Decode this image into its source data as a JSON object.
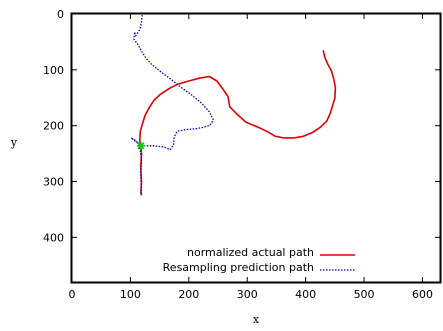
{
  "chart_data": {
    "type": "line",
    "title": "",
    "xlabel": "x",
    "ylabel": "y",
    "xlim": [
      0,
      630
    ],
    "ylim": [
      0,
      480
    ],
    "y_inverted": true,
    "grid": false,
    "legend_position": "bottom-center",
    "x_ticks": [
      "0",
      "100",
      "200",
      "300",
      "400",
      "500",
      "600"
    ],
    "y_ticks": [
      "0",
      "100",
      "200",
      "300",
      "400"
    ],
    "series": [
      {
        "name": "normalized actual path",
        "color": "#e00000",
        "style": "solid",
        "points": [
          [
            430,
            65
          ],
          [
            433,
            78
          ],
          [
            438,
            90
          ],
          [
            444,
            102
          ],
          [
            448,
            116
          ],
          [
            451,
            132
          ],
          [
            450,
            150
          ],
          [
            446,
            165
          ],
          [
            442,
            178
          ],
          [
            436,
            192
          ],
          [
            425,
            203
          ],
          [
            412,
            212
          ],
          [
            396,
            219
          ],
          [
            380,
            222
          ],
          [
            362,
            222
          ],
          [
            348,
            219
          ],
          [
            335,
            211
          ],
          [
            319,
            203
          ],
          [
            298,
            194
          ],
          [
            283,
            180
          ],
          [
            270,
            166
          ],
          [
            267,
            148
          ],
          [
            258,
            134
          ],
          [
            248,
            120
          ],
          [
            235,
            112
          ],
          [
            218,
            115
          ],
          [
            200,
            120
          ],
          [
            180,
            126
          ],
          [
            167,
            133
          ],
          [
            151,
            144
          ],
          [
            140,
            155
          ],
          [
            132,
            168
          ],
          [
            125,
            182
          ],
          [
            121,
            195
          ],
          [
            117,
            210
          ],
          [
            116,
            226
          ],
          [
            118,
            238
          ],
          [
            119,
            252
          ],
          [
            118,
            268
          ],
          [
            118,
            282
          ],
          [
            119,
            300
          ],
          [
            118,
            318
          ],
          [
            119,
            325
          ]
        ]
      },
      {
        "name": "Resampling prediction path",
        "color": "#0000cc",
        "style": "dotted",
        "points": [
          [
            120,
            2
          ],
          [
            119,
            15
          ],
          [
            116,
            28
          ],
          [
            109,
            39
          ],
          [
            107,
            32
          ],
          [
            106,
            45
          ],
          [
            113,
            55
          ],
          [
            119,
            66
          ],
          [
            126,
            78
          ],
          [
            136,
            90
          ],
          [
            150,
            102
          ],
          [
            167,
            115
          ],
          [
            185,
            130
          ],
          [
            205,
            145
          ],
          [
            222,
            160
          ],
          [
            235,
            175
          ],
          [
            242,
            190
          ],
          [
            235,
            200
          ],
          [
            215,
            205
          ],
          [
            195,
            207
          ],
          [
            180,
            210
          ],
          [
            175,
            220
          ],
          [
            174,
            234
          ],
          [
            168,
            243
          ],
          [
            157,
            238
          ],
          [
            140,
            236
          ],
          [
            120,
            236
          ],
          [
            108,
            226
          ],
          [
            101,
            222
          ],
          [
            112,
            231
          ],
          [
            117,
            245
          ],
          [
            119,
            262
          ],
          [
            118,
            282
          ],
          [
            118,
            298
          ],
          [
            119,
            312
          ],
          [
            118,
            322
          ]
        ]
      }
    ],
    "marker": {
      "x": 118,
      "y": 236,
      "color": "#00cc00"
    }
  }
}
